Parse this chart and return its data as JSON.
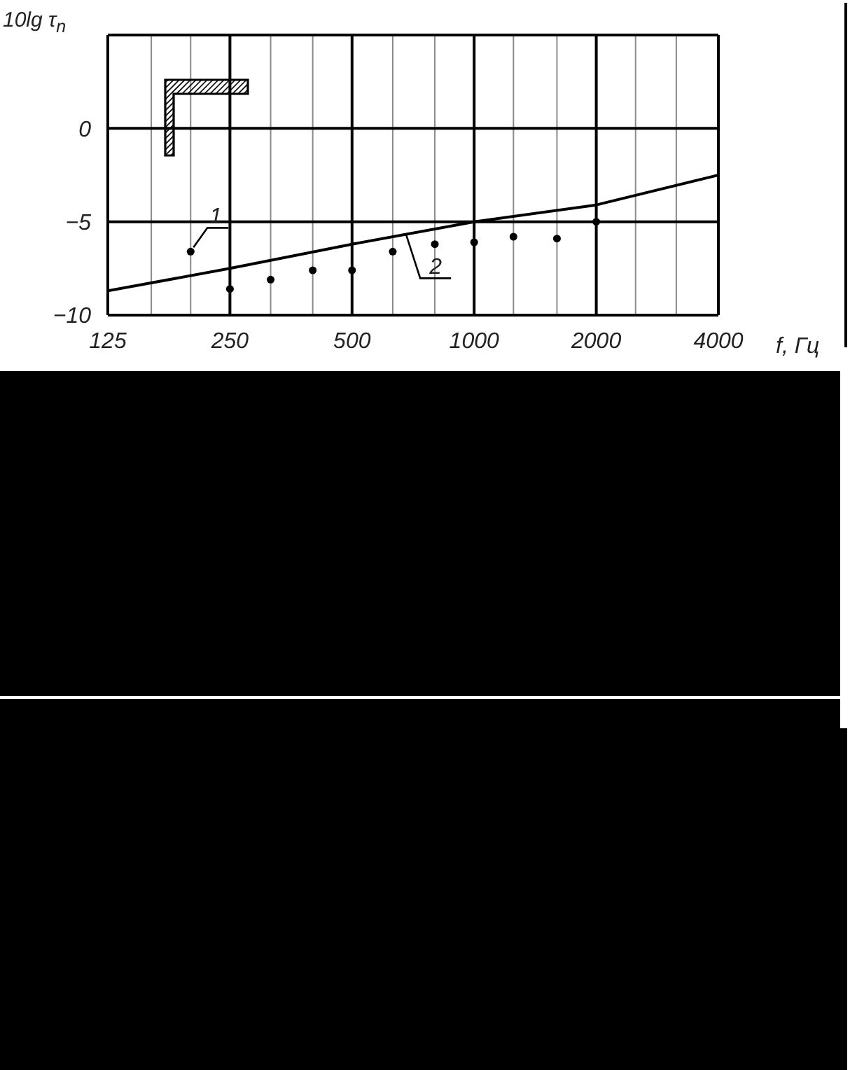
{
  "chart_data": {
    "type": "line",
    "xlabel": "f, Гц",
    "ylabel": "10lg τ$_{n}$",
    "log": "x",
    "xlim": [
      125,
      4000
    ],
    "xticks": [
      125,
      {
        "value": 160,
        "label": null
      },
      {
        "value": 200,
        "label": null
      },
      250,
      {
        "value": 315,
        "label": null
      },
      {
        "value": 400,
        "label": null
      },
      500,
      {
        "value": 630,
        "label": null
      },
      {
        "value": 800,
        "label": null
      },
      1000,
      {
        "value": 1250,
        "label": null
      },
      {
        "value": 1600,
        "label": null
      },
      2000,
      {
        "value": 2500,
        "label": null
      },
      {
        "value": 3150,
        "label": null
      },
      4000
    ],
    "ylim": [
      -10,
      5
    ],
    "yticks": [
      -10,
      -5,
      0
    ],
    "grid": true,
    "marker": "circle",
    "series": [
      {
        "type": "scatter",
        "color": "#000000",
        "x": [
          200,
          250,
          315,
          400,
          500,
          630,
          800,
          1000,
          1250,
          1600,
          2000
        ],
        "values": [
          -6.6,
          -8.6,
          -8.1,
          -7.6,
          -7.6,
          -6.6,
          -6.2,
          -6.1,
          -5.8,
          -5.9,
          -5.0
        ]
      },
      {
        "color": "#000000",
        "marker": "none",
        "x": [
          125,
          250,
          500,
          1000,
          2000,
          4000
        ],
        "values": [
          -8.7,
          -7.5,
          -6.2,
          -5.0,
          -4.1,
          -2.5
        ]
      }
    ],
    "annotations": [
      {
        "text": "1",
        "x": 200,
        "y": -6.6
      },
      {
        "text": "2",
        "x": 680,
        "y": -5.7
      }
    ]
  }
}
